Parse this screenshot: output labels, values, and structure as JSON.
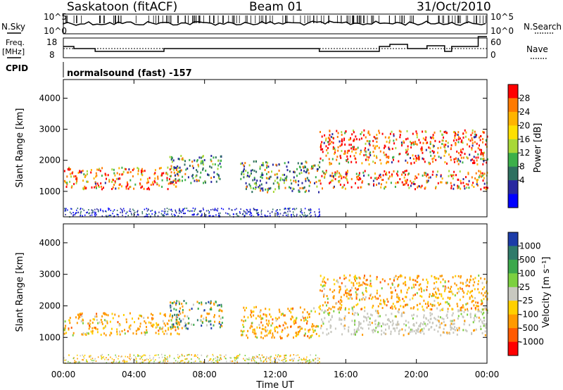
{
  "header": {
    "station": "Saskatoon (fitACF)",
    "beam": "Beam 01",
    "date": "31/Oct/2010"
  },
  "strips": {
    "nsky_label": "N.Sky",
    "nsky_ticks": [
      "10^5",
      "10^0"
    ],
    "nsearch_label": "N.Search",
    "nsearch_ticks": [
      "10^5",
      "10^0"
    ],
    "freq_label_line1": "Freq.",
    "freq_label_line2": "[MHz]",
    "freq_ticks": [
      "18",
      "8"
    ],
    "nave_label": "Nave",
    "nave_ticks": [
      "60",
      "0"
    ],
    "cpid_label": "CPID",
    "cpid_text": "normalsound (fast) -157"
  },
  "colorbars": {
    "power": {
      "label": "Power [dB]",
      "ticks": [
        "28",
        "24",
        "20",
        "16",
        "12",
        "8",
        "4"
      ],
      "colors": [
        "#ff0000",
        "#ff7a00",
        "#ffb400",
        "#ffe000",
        "#a8d838",
        "#3cb04a",
        "#2e7060",
        "#2828a0",
        "#0000ff"
      ]
    },
    "velocity": {
      "label": "Velocity [m s⁻¹]",
      "ticks": [
        "1000",
        "500",
        "100",
        "25",
        "-25",
        "-100",
        "-500",
        "-1000"
      ],
      "colors": [
        "#1c3ca8",
        "#2f7a6a",
        "#3ca84c",
        "#7cd040",
        "#c8c8c0",
        "#ffd000",
        "#ff9a00",
        "#ff5a00",
        "#ff0000"
      ]
    }
  },
  "chart_data": [
    {
      "type": "heatmap",
      "title": "",
      "ylabel": "Slant Range [km]",
      "xlabel": "Time UT",
      "ylim": [
        180,
        4600
      ],
      "yticks": [
        1000,
        2000,
        3000,
        4000
      ],
      "xticks": [
        "00:00",
        "04:00",
        "08:00",
        "12:00",
        "16:00",
        "20:00",
        "00:00"
      ],
      "quantity": "Power [dB]",
      "bands": [
        {
          "t0": 0.0,
          "t1": 6.6,
          "r0": 1100,
          "r1": 1800,
          "level": "high"
        },
        {
          "t0": 6.0,
          "t1": 9.0,
          "r0": 1300,
          "r1": 2200,
          "level": "mid"
        },
        {
          "t0": 10.0,
          "t1": 14.5,
          "r0": 1000,
          "r1": 2000,
          "level": "mid"
        },
        {
          "t0": 14.5,
          "t1": 24.0,
          "r0": 1100,
          "r1": 1700,
          "level": "high"
        },
        {
          "t0": 14.5,
          "t1": 24.0,
          "r0": 1900,
          "r1": 3000,
          "level": "high"
        }
      ]
    },
    {
      "type": "heatmap",
      "title": "",
      "ylabel": "Slant Range [km]",
      "xlabel": "Time UT",
      "ylim": [
        180,
        4600
      ],
      "yticks": [
        1000,
        2000,
        3000,
        4000
      ],
      "xticks": [
        "00:00",
        "04:00",
        "08:00",
        "12:00",
        "16:00",
        "20:00",
        "00:00"
      ],
      "quantity": "Velocity [m s-1]",
      "bands": [
        {
          "t0": 0.0,
          "t1": 6.6,
          "r0": 1100,
          "r1": 1800,
          "level": "neg"
        },
        {
          "t0": 6.0,
          "t1": 9.0,
          "r0": 1300,
          "r1": 2200,
          "level": "mixed"
        },
        {
          "t0": 10.0,
          "t1": 14.5,
          "r0": 1000,
          "r1": 2000,
          "level": "neg"
        },
        {
          "t0": 14.5,
          "t1": 24.0,
          "r0": 1100,
          "r1": 1900,
          "level": "ground"
        },
        {
          "t0": 14.5,
          "t1": 24.0,
          "r0": 1900,
          "r1": 3000,
          "level": "neg"
        }
      ]
    }
  ]
}
